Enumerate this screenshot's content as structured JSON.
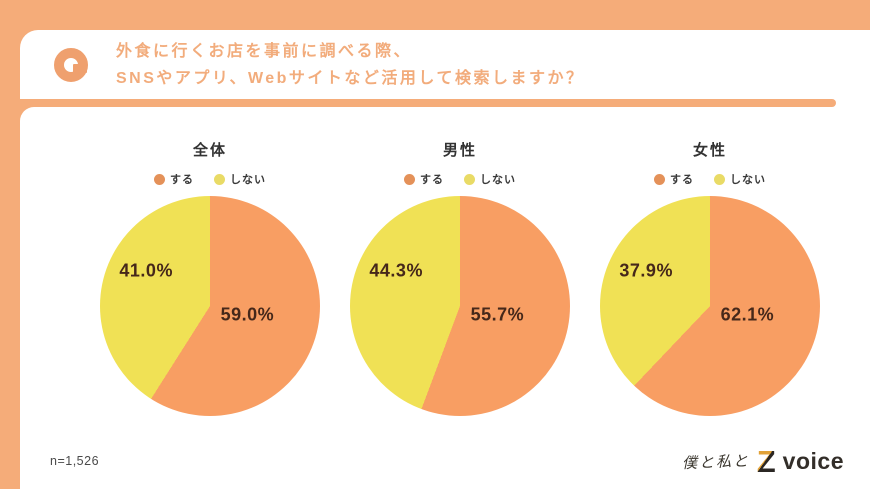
{
  "frame": {
    "color": "#F5AC79"
  },
  "header": {
    "question_line1": "外食に行くお店を事前に調べる際、",
    "question_line2": "SNSやアプリ、Webサイトなど活用して検索しますか？",
    "text_color": "#F2AC7C"
  },
  "chart_data": [
    {
      "type": "pie",
      "title": "全体",
      "legend_position": "top",
      "start_angle_deg": 0,
      "direction": "clockwise",
      "label_color": "#46281A",
      "legend": [
        {
          "label": "する",
          "color": "#E49159"
        },
        {
          "label": "しない",
          "color": "#E9DB66"
        }
      ],
      "slices": [
        {
          "label": "する",
          "value": 59.0,
          "display": "59.0%",
          "color": "#F89E63"
        },
        {
          "label": "しない",
          "value": 41.0,
          "display": "41.0%",
          "color": "#F0E155"
        }
      ]
    },
    {
      "type": "pie",
      "title": "男性",
      "legend_position": "top",
      "start_angle_deg": 0,
      "direction": "clockwise",
      "label_color": "#46281A",
      "legend": [
        {
          "label": "する",
          "color": "#E49159"
        },
        {
          "label": "しない",
          "color": "#E9DB66"
        }
      ],
      "slices": [
        {
          "label": "する",
          "value": 55.7,
          "display": "55.7%",
          "color": "#F89E63"
        },
        {
          "label": "しない",
          "value": 44.3,
          "display": "44.3%",
          "color": "#F0E155"
        }
      ]
    },
    {
      "type": "pie",
      "title": "女性",
      "legend_position": "top",
      "start_angle_deg": 0,
      "direction": "clockwise",
      "label_color": "#46281A",
      "legend": [
        {
          "label": "する",
          "color": "#E49159"
        },
        {
          "label": "しない",
          "color": "#E9DB66"
        }
      ],
      "slices": [
        {
          "label": "する",
          "value": 62.1,
          "display": "62.1%",
          "color": "#F89E63"
        },
        {
          "label": "しない",
          "value": 37.9,
          "display": "37.9%",
          "color": "#F0E155"
        }
      ]
    }
  ],
  "footer": {
    "sample_size": "n=1,526",
    "logo_handwritten": "僕と私と",
    "logo_z": "Z",
    "logo_voice": "voice"
  }
}
